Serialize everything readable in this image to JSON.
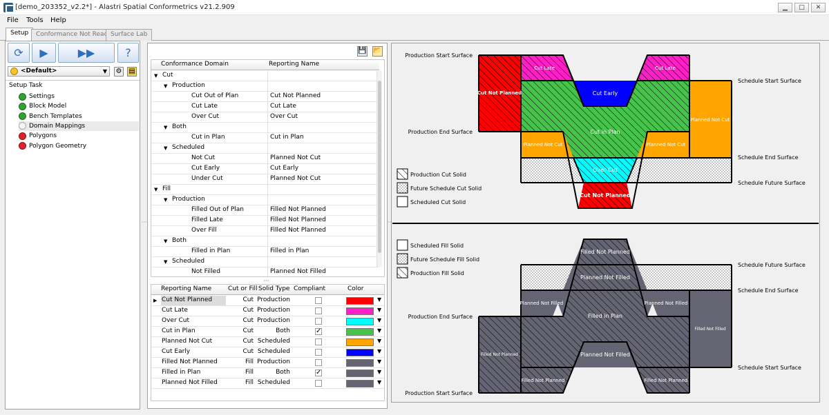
{
  "window": {
    "title": "[demo_203352_v2.2*] - Alastri Spatial Conformetrics v21.2.909",
    "minimize": "▁",
    "maximize": "□",
    "close": "✕"
  },
  "menu": [
    "File",
    "Tools",
    "Help"
  ],
  "tabs": [
    {
      "label": "Setup"
    },
    {
      "label": "Conformance Not Ready"
    },
    {
      "label": "Surface Lab"
    }
  ],
  "toolbar": {
    "profile": "<Default>",
    "help_glyph": "?"
  },
  "setup_task": {
    "header": "Setup Task",
    "items": [
      {
        "label": "Settings",
        "status": "ok"
      },
      {
        "label": "Block Model",
        "status": "ok"
      },
      {
        "label": "Bench Templates",
        "status": "ok"
      },
      {
        "label": "Domain Mappings",
        "status": "none"
      },
      {
        "label": "Polygons",
        "status": "err"
      },
      {
        "label": "Polygon Geometry",
        "status": "err"
      }
    ]
  },
  "domain_tree": {
    "columns": [
      "Conformance Domain",
      "Reporting Name"
    ],
    "rows": [
      {
        "level": 0,
        "domain": "Cut",
        "name": "",
        "expander": true
      },
      {
        "level": 1,
        "domain": "Production",
        "name": "",
        "expander": true
      },
      {
        "level": 2,
        "domain": "Cut Out of Plan",
        "name": "Cut Not Planned"
      },
      {
        "level": 2,
        "domain": "Cut Late",
        "name": "Cut Late"
      },
      {
        "level": 2,
        "domain": "Over Cut",
        "name": "Over Cut"
      },
      {
        "level": 1,
        "domain": "Both",
        "name": "",
        "expander": true
      },
      {
        "level": 2,
        "domain": "Cut in Plan",
        "name": "Cut in Plan"
      },
      {
        "level": 1,
        "domain": "Scheduled",
        "name": "",
        "expander": true
      },
      {
        "level": 2,
        "domain": "Not Cut",
        "name": "Planned Not Cut"
      },
      {
        "level": 2,
        "domain": "Cut Early",
        "name": "Cut Early"
      },
      {
        "level": 2,
        "domain": "Under Cut",
        "name": "Planned Not Cut"
      },
      {
        "level": 0,
        "domain": "Fill",
        "name": "",
        "expander": true
      },
      {
        "level": 1,
        "domain": "Production",
        "name": "",
        "expander": true
      },
      {
        "level": 2,
        "domain": "Filled Out of Plan",
        "name": "Filled Not Planned"
      },
      {
        "level": 2,
        "domain": "Filled Late",
        "name": "Filled Not Planned"
      },
      {
        "level": 2,
        "domain": "Over Fill",
        "name": "Filled Not Planned"
      },
      {
        "level": 1,
        "domain": "Both",
        "name": "",
        "expander": true
      },
      {
        "level": 2,
        "domain": "Filled in Plan",
        "name": "Filled in Plan"
      },
      {
        "level": 1,
        "domain": "Scheduled",
        "name": "",
        "expander": true
      },
      {
        "level": 2,
        "domain": "Not Filled",
        "name": "Planned Not Filled"
      }
    ]
  },
  "reporting_grid": {
    "columns": [
      "Reporting Name",
      "Cut or Fill",
      "Solid Type",
      "Compliant",
      "Color"
    ],
    "rows": [
      {
        "name": "Cut Not Planned",
        "cut_or_fill": "Cut",
        "solid": "Production",
        "compliant": false,
        "color": "#ff0000",
        "current": true
      },
      {
        "name": "Cut Late",
        "cut_or_fill": "Cut",
        "solid": "Production",
        "compliant": false,
        "color": "#ff1fc7"
      },
      {
        "name": "Over Cut",
        "cut_or_fill": "Cut",
        "solid": "Production",
        "compliant": false,
        "color": "#00ffff"
      },
      {
        "name": "Cut in Plan",
        "cut_or_fill": "Cut",
        "solid": "Both",
        "compliant": true,
        "color": "#45c34a"
      },
      {
        "name": "Planned Not Cut",
        "cut_or_fill": "Cut",
        "solid": "Scheduled",
        "compliant": false,
        "color": "#ffa500"
      },
      {
        "name": "Cut Early",
        "cut_or_fill": "Cut",
        "solid": "Scheduled",
        "compliant": false,
        "color": "#0000ff"
      },
      {
        "name": "Filled Not Planned",
        "cut_or_fill": "Fill",
        "solid": "Production",
        "compliant": false,
        "color": "#646472"
      },
      {
        "name": "Filled in Plan",
        "cut_or_fill": "Fill",
        "solid": "Both",
        "compliant": true,
        "color": "#646472"
      },
      {
        "name": "Planned Not Filled",
        "cut_or_fill": "Fill",
        "solid": "Scheduled",
        "compliant": false,
        "color": "#646472"
      }
    ]
  },
  "diagram": {
    "cut_surfaces": {
      "prod_start": "Production Start Surface",
      "prod_end": "Production End Surface",
      "sched_start": "Schedule Start Surface",
      "sched_end": "Schedule End Surface",
      "sched_future": "Schedule Future Surface"
    },
    "cut_regions": {
      "cut_not_planned": "Cut Not Planned",
      "cut_late_left": "Cut Late",
      "cut_late_right": "Cut Late",
      "cut_early": "Cut Early",
      "cut_in_plan": "Cut in Plan",
      "planned_not_cut_right": "Planned Not Cut",
      "planned_not_cut_left": "Planned Not Cut",
      "planned_not_cut_mid": "Planned Not Cut",
      "over_cut": "Over Cut",
      "cut_not_planned_bottom": "Cut Not Planned"
    },
    "cut_legend": [
      "Production Cut Solid",
      "Future Schedule Cut Solid",
      "Scheduled Cut Solid"
    ],
    "fill_surfaces": {
      "sched_future": "Schedule Future Surface",
      "sched_end": "Schedule End Surface",
      "prod_end": "Production End Surface",
      "sched_start": "Schedule Start Surface",
      "prod_start": "Production Start Surface"
    },
    "fill_regions": {
      "filled_not_planned_top": "Filled Not Planned",
      "planned_not_filled_top": "Planned Not Filled",
      "planned_not_filled_left": "Planned Not Filled",
      "planned_not_filled_right": "Planned Not Filled",
      "filled_in_plan": "Filled in Plan",
      "filled_not_planned_right": "Filled Not Filled",
      "filled_not_planned_left": "Filled Not Planned",
      "planned_not_filled_mid": "Planned Not Filled",
      "filled_not_planned_bl": "Filled Not Planned",
      "filled_not_planned_br": "Filled Not Planned"
    },
    "fill_legend": [
      "Scheduled Fill Solid",
      "Future Schedule Fill Solid",
      "Production Fill Solid"
    ]
  }
}
